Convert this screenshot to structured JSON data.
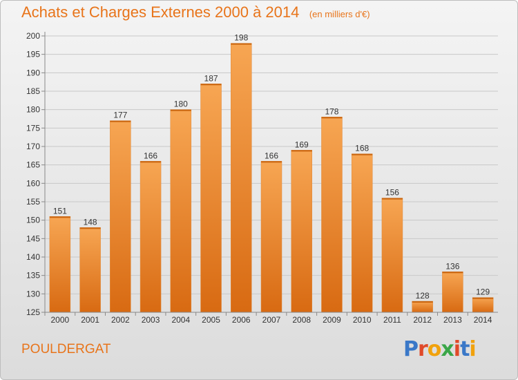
{
  "title": "Achats et Charges Externes 2000 à 2014",
  "unit": "(en milliers d'€)",
  "commune": "POULDERGAT",
  "logo": {
    "letters": [
      "P",
      "r",
      "o",
      "x",
      "i",
      "t",
      "i"
    ],
    "colors": [
      "#3a78c8",
      "#e04a2a",
      "#f1a20d",
      "#3aa648",
      "#e04a2a",
      "#3a78c8",
      "#f1a20d"
    ]
  },
  "colors": {
    "bar": "#f0923a",
    "bar_dark": "#d86a12",
    "title": "#e8741a"
  },
  "chart_data": {
    "type": "bar",
    "title": "Achats et Charges Externes 2000 à 2014",
    "subtitle": "(en milliers d'€)",
    "categories": [
      "2000",
      "2001",
      "2002",
      "2003",
      "2004",
      "2005",
      "2006",
      "2007",
      "2008",
      "2009",
      "2010",
      "2011",
      "2012",
      "2013",
      "2014"
    ],
    "values": [
      151,
      148,
      177,
      166,
      180,
      187,
      198,
      166,
      169,
      178,
      168,
      156,
      128,
      136,
      129
    ],
    "ylim": [
      125,
      200
    ],
    "yticks": [
      125,
      130,
      135,
      140,
      145,
      150,
      155,
      160,
      165,
      170,
      175,
      180,
      185,
      190,
      195,
      200
    ],
    "grid": true,
    "data_labels": true
  }
}
